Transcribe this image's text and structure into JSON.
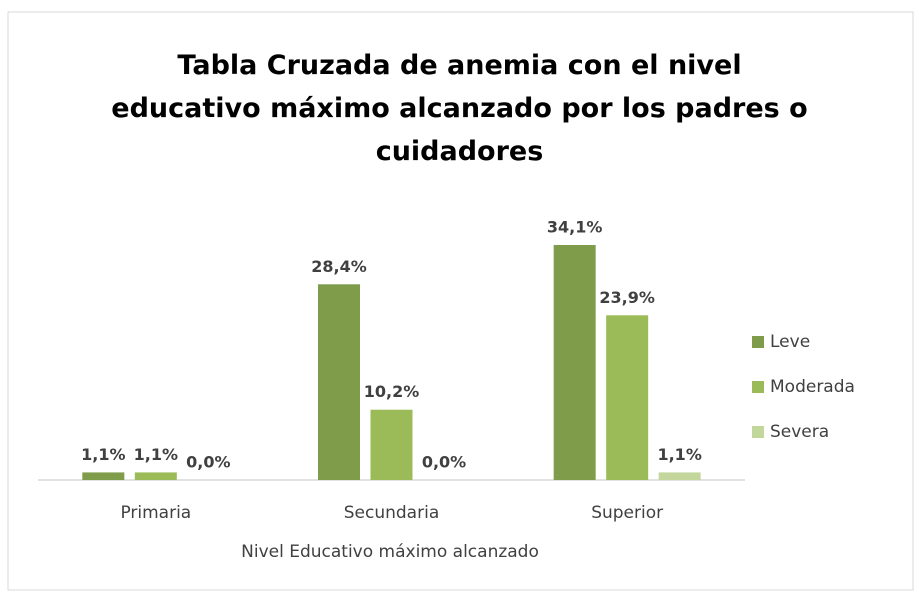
{
  "chart_data": {
    "type": "bar",
    "title": "Tabla Cruzada de anemia con el nivel\neducativo máximo alcanzado por los padres o\ncuidadores",
    "x_label": "Nivel Educativo máximo alcanzado",
    "categories": [
      "Primaria",
      "Secundaria",
      "Superior"
    ],
    "series": [
      {
        "name": "Leve",
        "color": "#7f9c4b",
        "values": [
          1.1,
          28.4,
          34.1
        ],
        "value_labels": [
          "1,1%",
          "28,4%",
          "34,1%"
        ]
      },
      {
        "name": "Moderada",
        "color": "#9bbb59",
        "values": [
          1.1,
          10.2,
          23.9
        ],
        "value_labels": [
          "1,1%",
          "10,2%",
          "23,9%"
        ]
      },
      {
        "name": "Severa",
        "color": "#c3d69b",
        "values": [
          0.0,
          0.0,
          1.1
        ],
        "value_labels": [
          "0,0%",
          "0,0%",
          "1,1%"
        ]
      }
    ],
    "legend": "right"
  }
}
